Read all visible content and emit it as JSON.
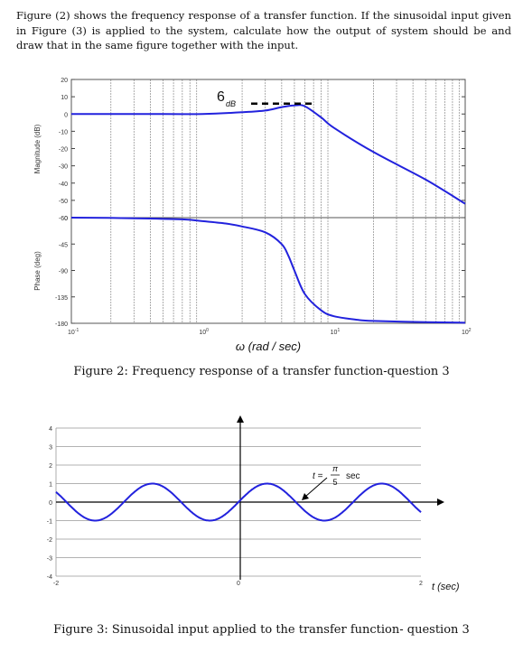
{
  "problem": {
    "text": "Figure (2) shows the frequency response of a transfer function. If the sinusoidal input given in Figure (3) is applied to the system, calculate how the output of system should be and draw that in the same figure together with the input."
  },
  "figure2": {
    "caption": "Figure 2: Frequency response of a transfer function-question 3",
    "xlabel": "ω (rad / sec)",
    "annotation_value": "6",
    "annotation_unit": "dB"
  },
  "figure3": {
    "caption": "Figure 3: Sinusoidal input applied to the transfer function- question 3",
    "xlabel": "t  (sec)",
    "annotation_prefix": "t = ",
    "annotation_num": "π",
    "annotation_den": "5",
    "annotation_unit": "sec"
  },
  "chart_data": [
    {
      "type": "line",
      "name": "bode-magnitude",
      "ylabel": "Magnitude (dB)",
      "xscale": "log",
      "xlim": [
        0.1,
        100
      ],
      "ylim": [
        -60,
        20
      ],
      "yticks": [
        20,
        10,
        0,
        -10,
        -20,
        -30,
        -40,
        -50,
        -60
      ],
      "x": [
        0.1,
        0.5,
        1,
        2,
        3,
        4,
        5,
        6,
        8,
        10,
        20,
        50,
        100
      ],
      "y": [
        0,
        0,
        0,
        1,
        2,
        4,
        5,
        4.5,
        -2,
        -8,
        -22,
        -38,
        -52
      ],
      "grid": true,
      "color": "#2222dd"
    },
    {
      "type": "line",
      "name": "bode-phase",
      "ylabel": "Phase (deg)",
      "xscale": "log",
      "xlim": [
        0.1,
        100
      ],
      "ylim": [
        -180,
        0
      ],
      "yticks": [
        0,
        -45,
        -90,
        -135,
        -180
      ],
      "xtick_labels": [
        "10",
        "10",
        "10",
        "10"
      ],
      "xtick_exponents": [
        "-1",
        "0",
        "1",
        "2"
      ],
      "x": [
        0.1,
        0.3,
        0.7,
        1,
        1.5,
        2,
        3,
        4,
        4.5,
        5,
        6,
        8,
        10,
        15,
        20,
        50,
        100
      ],
      "y": [
        0,
        -1,
        -3,
        -6,
        -10,
        -15,
        -25,
        -45,
        -65,
        -90,
        -130,
        -158,
        -168,
        -174,
        -176,
        -178,
        -179
      ],
      "grid": true,
      "color": "#2222dd"
    },
    {
      "type": "line",
      "name": "sinusoidal-input",
      "xlim": [
        -2,
        2
      ],
      "ylim": [
        -4,
        4
      ],
      "yticks": [
        4,
        3,
        2,
        1,
        0,
        -1,
        -2,
        -3,
        -4
      ],
      "xticks": [
        -2,
        0,
        2
      ],
      "function": "sin(5t)",
      "amplitude": 1,
      "angular_frequency": 5,
      "grid": true,
      "color": "#2222dd"
    }
  ]
}
